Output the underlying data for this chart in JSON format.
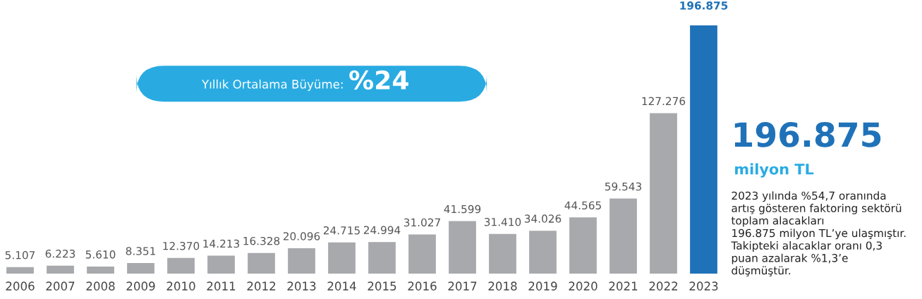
{
  "chart_data": {
    "type": "bar",
    "categories": [
      "2006",
      "2007",
      "2008",
      "2009",
      "2010",
      "2011",
      "2012",
      "2013",
      "2014",
      "2015",
      "2016",
      "2017",
      "2018",
      "2019",
      "2020",
      "2021",
      "2022",
      "2023"
    ],
    "values": [
      5107,
      6223,
      5610,
      8351,
      12370,
      14213,
      16328,
      20096,
      24715,
      24994,
      31027,
      41599,
      31410,
      34026,
      44565,
      59543,
      127276,
      196875
    ],
    "colors": [
      "#a7a9ac",
      "#a7a9ac",
      "#a7a9ac",
      "#a7a9ac",
      "#a7a9ac",
      "#a7a9ac",
      "#a7a9ac",
      "#a7a9ac",
      "#a7a9ac",
      "#a7a9ac",
      "#a7a9ac",
      "#a7a9ac",
      "#a7a9ac",
      "#a7a9ac",
      "#a7a9ac",
      "#a7a9ac",
      "#a7a9ac",
      "#1f72b8"
    ],
    "value_labels": [
      "5.107",
      "6.223",
      "5.610",
      "8.351",
      "12.370",
      "14.213",
      "16.328",
      "20.096",
      "24.715",
      "24.994",
      "31.027",
      "41.599",
      "31.410",
      "34.026",
      "44.565",
      "59.543",
      "127.276",
      "196.875"
    ],
    "annotations": [
      "Yıllık Ortalama Büyüme:",
      "%24",
      "196.875",
      "milyon TL",
      "2023 yılında %54,7 oranında\nartış gösteren faktoring sektörü\ntoplam alacakları\n196.875 milyon TL’ye ulaşmıştır.\nTakipteki alacaklar oranı 0,3\npuan azalarak %1,3’e\ndüşmüştür."
    ],
    "grid": false,
    "legend": false
  }
}
